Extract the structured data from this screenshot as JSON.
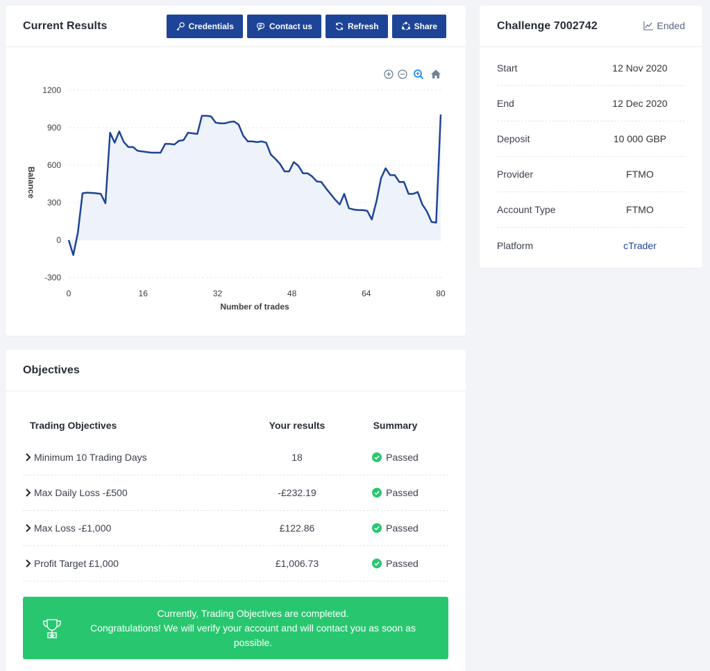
{
  "results": {
    "title": "Current Results",
    "buttons": [
      {
        "label": "Credentials",
        "icon": "key-icon"
      },
      {
        "label": "Contact us",
        "icon": "chat-icon"
      },
      {
        "label": "Refresh",
        "icon": "refresh-icon"
      },
      {
        "label": "Share",
        "icon": "share-icon"
      }
    ],
    "chart_toolbar": [
      "zoom-in-icon",
      "zoom-out-icon",
      "zoom-select-icon",
      "home-icon"
    ]
  },
  "chart_data": {
    "type": "area",
    "xlabel": "Number of trades",
    "ylabel": "Balance",
    "xlim": [
      0,
      80
    ],
    "ylim": [
      -300,
      1200
    ],
    "x_ticks": [
      0,
      16,
      32,
      48,
      64,
      80
    ],
    "y_ticks": [
      1200,
      900,
      600,
      300,
      0,
      -300
    ],
    "line_color": "#1d4497",
    "fill_color": "#eef2fa",
    "grid": true,
    "series": [
      {
        "values": [
          [
            0,
            0
          ],
          [
            1,
            -120
          ],
          [
            2,
            60
          ],
          [
            3,
            375
          ],
          [
            4,
            380
          ],
          [
            5,
            378
          ],
          [
            6,
            375
          ],
          [
            7,
            370
          ],
          [
            8,
            295
          ],
          [
            9,
            860
          ],
          [
            10,
            780
          ],
          [
            11,
            870
          ],
          [
            12,
            785
          ],
          [
            13,
            745
          ],
          [
            14,
            745
          ],
          [
            15,
            715
          ],
          [
            16,
            710
          ],
          [
            17,
            705
          ],
          [
            18,
            700
          ],
          [
            19,
            700
          ],
          [
            20,
            700
          ],
          [
            21,
            770
          ],
          [
            22,
            770
          ],
          [
            23,
            765
          ],
          [
            24,
            795
          ],
          [
            25,
            800
          ],
          [
            26,
            860
          ],
          [
            27,
            855
          ],
          [
            28,
            850
          ],
          [
            29,
            995
          ],
          [
            30,
            995
          ],
          [
            31,
            990
          ],
          [
            32,
            940
          ],
          [
            33,
            935
          ],
          [
            34,
            935
          ],
          [
            35,
            945
          ],
          [
            36,
            950
          ],
          [
            37,
            925
          ],
          [
            38,
            835
          ],
          [
            39,
            790
          ],
          [
            40,
            790
          ],
          [
            41,
            785
          ],
          [
            42,
            790
          ],
          [
            43,
            780
          ],
          [
            44,
            685
          ],
          [
            45,
            650
          ],
          [
            46,
            610
          ],
          [
            47,
            550
          ],
          [
            48,
            550
          ],
          [
            49,
            625
          ],
          [
            50,
            595
          ],
          [
            51,
            535
          ],
          [
            52,
            535
          ],
          [
            53,
            510
          ],
          [
            54,
            470
          ],
          [
            55,
            465
          ],
          [
            56,
            415
          ],
          [
            57,
            370
          ],
          [
            58,
            325
          ],
          [
            59,
            285
          ],
          [
            60,
            370
          ],
          [
            61,
            255
          ],
          [
            62,
            245
          ],
          [
            63,
            240
          ],
          [
            64,
            240
          ],
          [
            65,
            235
          ],
          [
            66,
            165
          ],
          [
            67,
            310
          ],
          [
            68,
            495
          ],
          [
            69,
            575
          ],
          [
            70,
            520
          ],
          [
            71,
            520
          ],
          [
            72,
            465
          ],
          [
            73,
            465
          ],
          [
            74,
            370
          ],
          [
            75,
            370
          ],
          [
            76,
            385
          ],
          [
            77,
            285
          ],
          [
            78,
            230
          ],
          [
            79,
            145
          ],
          [
            80,
            140
          ],
          [
            81,
            1005
          ]
        ]
      }
    ]
  },
  "challenge": {
    "title": "Challenge 7002742",
    "status": "Ended",
    "rows": [
      {
        "label": "Start",
        "value": "12 Nov 2020"
      },
      {
        "label": "End",
        "value": "12 Dec 2020"
      },
      {
        "label": "Deposit",
        "value": "10 000 GBP"
      },
      {
        "label": "Provider",
        "value": "FTMO"
      },
      {
        "label": "Account Type",
        "value": "FTMO"
      },
      {
        "label": "Platform",
        "value": "cTrader"
      }
    ]
  },
  "objectives": {
    "title": "Objectives",
    "headers": [
      "Trading Objectives",
      "Your results",
      "Summary"
    ],
    "rows": [
      {
        "objective": "Minimum 10 Trading Days",
        "result": "18",
        "summary": "Passed"
      },
      {
        "objective": "Max Daily Loss -£500",
        "result": "-£232.19",
        "summary": "Passed"
      },
      {
        "objective": "Max Loss -£1,000",
        "result": "£122.86",
        "summary": "Passed"
      },
      {
        "objective": "Profit Target £1,000",
        "result": "£1,006.73",
        "summary": "Passed"
      }
    ],
    "banner": {
      "line1": "Currently, Trading Objectives are completed.",
      "line2": "Congratulations! We will verify your account and will contact you as soon as possible.",
      "color": "#28c76f"
    }
  }
}
